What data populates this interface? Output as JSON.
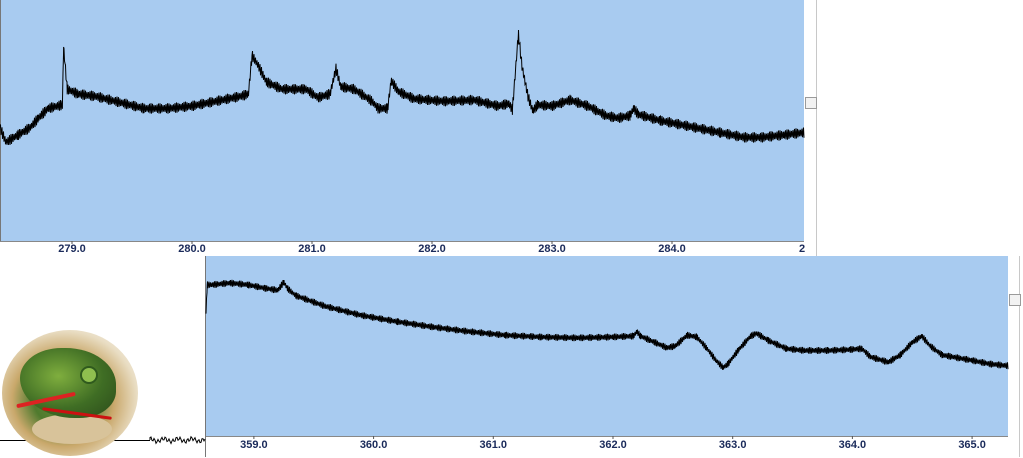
{
  "chart_data": [
    {
      "type": "line",
      "title": "",
      "xlabel": "",
      "ylabel": "",
      "grid": false,
      "xlim": [
        278.4,
        285.1
      ],
      "x_ticks": [
        279.0,
        280.0,
        281.0,
        282.0,
        283.0,
        284.0
      ],
      "x_tick_labels": [
        "279.0",
        "280.0",
        "281.0",
        "282.0",
        "283.0",
        "284.0"
      ],
      "cut_off_right_label": "2",
      "ylim": [
        0,
        100
      ],
      "series": [
        {
          "oscillation_amplitude": 2.5,
          "points": [
            [
              278.4,
              47.0
            ],
            [
              278.45,
              41.0
            ],
            [
              278.55,
              44.0
            ],
            [
              278.65,
              47.0
            ],
            [
              278.72,
              51.0
            ],
            [
              278.8,
              55.0
            ],
            [
              278.92,
              56.5
            ],
            [
              278.93,
              80.5
            ],
            [
              278.96,
              63.0
            ],
            [
              279.05,
              61.0
            ],
            [
              279.2,
              60.0
            ],
            [
              279.4,
              57.5
            ],
            [
              279.6,
              55.0
            ],
            [
              279.8,
              55.0
            ],
            [
              280.0,
              56.0
            ],
            [
              280.2,
              58.0
            ],
            [
              280.4,
              60.0
            ],
            [
              280.47,
              61.0
            ],
            [
              280.5,
              77.0
            ],
            [
              280.55,
              73.0
            ],
            [
              280.62,
              66.0
            ],
            [
              280.75,
              63.0
            ],
            [
              280.95,
              63.0
            ],
            [
              281.05,
              59.5
            ],
            [
              281.15,
              61.0
            ],
            [
              281.2,
              71.5
            ],
            [
              281.24,
              64.0
            ],
            [
              281.35,
              63.0
            ],
            [
              281.5,
              58.0
            ],
            [
              281.55,
              55.0
            ],
            [
              281.63,
              55.0
            ],
            [
              281.66,
              66.5
            ],
            [
              281.72,
              62.0
            ],
            [
              281.85,
              59.0
            ],
            [
              282.1,
              58.0
            ],
            [
              282.35,
              58.5
            ],
            [
              282.55,
              56.0
            ],
            [
              282.64,
              57.0
            ],
            [
              282.67,
              54.5
            ],
            [
              282.72,
              86.0
            ],
            [
              282.75,
              72.5
            ],
            [
              282.8,
              60.0
            ],
            [
              282.84,
              54.0
            ],
            [
              282.88,
              56.5
            ],
            [
              283.0,
              56.0
            ],
            [
              283.15,
              58.5
            ],
            [
              283.3,
              56.0
            ],
            [
              283.45,
              52.0
            ],
            [
              283.55,
              51.0
            ],
            [
              283.65,
              52.0
            ],
            [
              283.68,
              55.0
            ],
            [
              283.72,
              52.5
            ],
            [
              283.9,
              50.0
            ],
            [
              284.1,
              48.0
            ],
            [
              284.4,
              45.0
            ],
            [
              284.6,
              43.0
            ],
            [
              284.75,
              43.0
            ],
            [
              284.93,
              44.0
            ],
            [
              285.1,
              45.0
            ]
          ]
        }
      ]
    },
    {
      "type": "line",
      "title": "",
      "xlabel": "",
      "ylabel": "",
      "grid": false,
      "xlim": [
        358.6,
        365.3
      ],
      "x_ticks": [
        359.0,
        360.0,
        361.0,
        362.0,
        363.0,
        364.0,
        365.0
      ],
      "x_tick_labels": [
        "359.0",
        "360.0",
        "361.0",
        "362.0",
        "363.0",
        "364.0",
        "365.0"
      ],
      "ylim": [
        0,
        100
      ],
      "series": [
        {
          "oscillation_amplitude": 2.2,
          "points": [
            [
              358.6,
              68.0
            ],
            [
              358.61,
              84.0
            ],
            [
              358.65,
              84.0
            ],
            [
              358.8,
              85.0
            ],
            [
              358.95,
              84.0
            ],
            [
              359.1,
              82.0
            ],
            [
              359.2,
              81.0
            ],
            [
              359.25,
              85.5
            ],
            [
              359.28,
              82.0
            ],
            [
              359.35,
              78.0
            ],
            [
              359.6,
              72.0
            ],
            [
              359.9,
              67.0
            ],
            [
              360.2,
              63.5
            ],
            [
              360.5,
              60.5
            ],
            [
              360.8,
              58.0
            ],
            [
              361.1,
              56.0
            ],
            [
              361.4,
              55.0
            ],
            [
              361.7,
              54.5
            ],
            [
              362.0,
              55.0
            ],
            [
              362.17,
              55.5
            ],
            [
              362.2,
              58.0
            ],
            [
              362.23,
              55.5
            ],
            [
              362.35,
              52.0
            ],
            [
              362.45,
              49.0
            ],
            [
              362.52,
              50.0
            ],
            [
              362.62,
              56.0
            ],
            [
              362.7,
              55.0
            ],
            [
              362.78,
              49.0
            ],
            [
              362.86,
              42.0
            ],
            [
              362.92,
              38.0
            ],
            [
              362.96,
              40.0
            ],
            [
              363.05,
              48.0
            ],
            [
              363.15,
              55.5
            ],
            [
              363.2,
              57.0
            ],
            [
              363.3,
              53.0
            ],
            [
              363.45,
              48.5
            ],
            [
              363.6,
              47.5
            ],
            [
              363.8,
              47.5
            ],
            [
              363.98,
              48.0
            ],
            [
              364.08,
              48.5
            ],
            [
              364.15,
              44.0
            ],
            [
              364.3,
              41.0
            ],
            [
              364.4,
              45.0
            ],
            [
              364.5,
              52.0
            ],
            [
              364.58,
              55.5
            ],
            [
              364.65,
              50.0
            ],
            [
              364.75,
              45.0
            ],
            [
              365.0,
              42.0
            ],
            [
              365.15,
              40.0
            ],
            [
              365.3,
              39.0
            ]
          ]
        }
      ]
    }
  ]
}
